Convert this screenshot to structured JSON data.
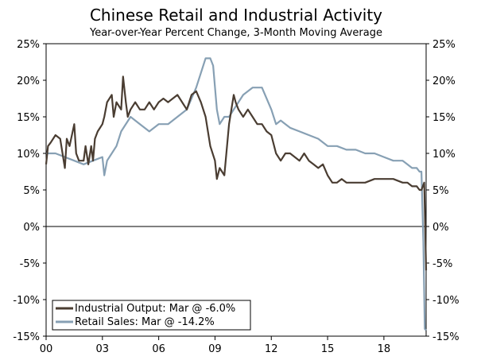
{
  "chart_data": {
    "type": "line",
    "title": "Chinese Retail and Industrial Activity",
    "subtitle": "Year-over-Year Percent Change, 3-Month Moving Average",
    "xlabel": "",
    "ylabel": "",
    "x_ticks": [
      "00",
      "03",
      "06",
      "09",
      "12",
      "15",
      "18"
    ],
    "x_tick_years": [
      2000,
      2003,
      2006,
      2009,
      2012,
      2015,
      2018
    ],
    "xlim": [
      2000.0,
      2020.25
    ],
    "ylim": [
      -15,
      25
    ],
    "y_ticks": [
      -15,
      -10,
      -5,
      0,
      5,
      10,
      15,
      20,
      25
    ],
    "y_tick_labels": [
      "-15%",
      "-10%",
      "-5%",
      "0%",
      "5%",
      "10%",
      "15%",
      "20%",
      "25%"
    ],
    "legend_position": "bottom-left",
    "grid": false,
    "series": [
      {
        "name": "Industrial Output: Mar @ -6.0%",
        "color": "#4a3d32",
        "x": [
          2000.0,
          2000.1,
          2000.25,
          2000.5,
          2000.75,
          2001.0,
          2001.1,
          2001.25,
          2001.5,
          2001.6,
          2001.75,
          2002.0,
          2002.1,
          2002.25,
          2002.4,
          2002.5,
          2002.6,
          2002.75,
          2003.0,
          2003.1,
          2003.25,
          2003.5,
          2003.6,
          2003.75,
          2004.0,
          2004.1,
          2004.25,
          2004.35,
          2004.5,
          2004.75,
          2005.0,
          2005.25,
          2005.5,
          2005.75,
          2006.0,
          2006.25,
          2006.5,
          2006.75,
          2007.0,
          2007.25,
          2007.5,
          2007.75,
          2008.0,
          2008.25,
          2008.5,
          2008.75,
          2009.0,
          2009.1,
          2009.25,
          2009.5,
          2009.75,
          2010.0,
          2010.1,
          2010.25,
          2010.5,
          2010.75,
          2011.0,
          2011.25,
          2011.5,
          2011.75,
          2012.0,
          2012.25,
          2012.5,
          2012.75,
          2013.0,
          2013.25,
          2013.5,
          2013.75,
          2014.0,
          2014.25,
          2014.5,
          2014.75,
          2015.0,
          2015.25,
          2015.5,
          2015.75,
          2016.0,
          2016.5,
          2017.0,
          2017.5,
          2018.0,
          2018.5,
          2019.0,
          2019.25,
          2019.5,
          2019.75,
          2019.9,
          2020.0,
          2020.15,
          2020.25
        ],
        "y": [
          8.5,
          11,
          11.5,
          12.5,
          12,
          8,
          12,
          11,
          14,
          10,
          9,
          9,
          11,
          8.5,
          11,
          9,
          12,
          13,
          14,
          15,
          17,
          18,
          15,
          17,
          16,
          20.5,
          17,
          15,
          16,
          17,
          16,
          16,
          17,
          16,
          17,
          17.5,
          17,
          17.5,
          18,
          17,
          16,
          18,
          18.5,
          17,
          15,
          11,
          9,
          6.5,
          8,
          7,
          14,
          18,
          17,
          16,
          15,
          16,
          15,
          14,
          14,
          13,
          12.5,
          10,
          9,
          10,
          10,
          9.5,
          9,
          10,
          9,
          8.5,
          8,
          8.5,
          7,
          6,
          6,
          6.5,
          6,
          6,
          6,
          6.5,
          6.5,
          6.5,
          6,
          6,
          5.5,
          5.5,
          5,
          5,
          6,
          -6
        ]
      },
      {
        "name": "Retail Sales: Mar @ -14.2%",
        "color": "#87a0b4",
        "x": [
          2000.0,
          2000.5,
          2001.0,
          2001.5,
          2002.0,
          2002.5,
          2003.0,
          2003.1,
          2003.25,
          2003.5,
          2003.75,
          2004.0,
          2004.5,
          2005.0,
          2005.5,
          2006.0,
          2006.5,
          2007.0,
          2007.5,
          2008.0,
          2008.25,
          2008.5,
          2008.75,
          2008.9,
          2009.1,
          2009.25,
          2009.5,
          2009.75,
          2010.0,
          2010.5,
          2011.0,
          2011.5,
          2012.0,
          2012.25,
          2012.5,
          2012.75,
          2013.0,
          2013.5,
          2014.0,
          2014.5,
          2015.0,
          2015.5,
          2016.0,
          2016.5,
          2017.0,
          2017.5,
          2018.0,
          2018.5,
          2019.0,
          2019.25,
          2019.5,
          2019.75,
          2019.9,
          2020.0,
          2020.1,
          2020.18,
          2020.25
        ],
        "y": [
          10,
          10,
          9.5,
          9,
          8.5,
          9,
          9.5,
          7,
          9,
          10,
          11,
          13,
          15,
          14,
          13,
          14,
          14,
          15,
          16,
          19,
          21,
          23,
          23,
          22,
          16,
          14,
          15,
          15,
          16,
          18,
          19,
          19,
          16,
          14,
          14.5,
          14,
          13.5,
          13,
          12.5,
          12,
          11,
          11,
          10.5,
          10.5,
          10,
          10,
          9.5,
          9,
          9,
          8.5,
          8,
          8,
          7.5,
          7.5,
          -2,
          -14,
          -14.2
        ]
      }
    ]
  }
}
